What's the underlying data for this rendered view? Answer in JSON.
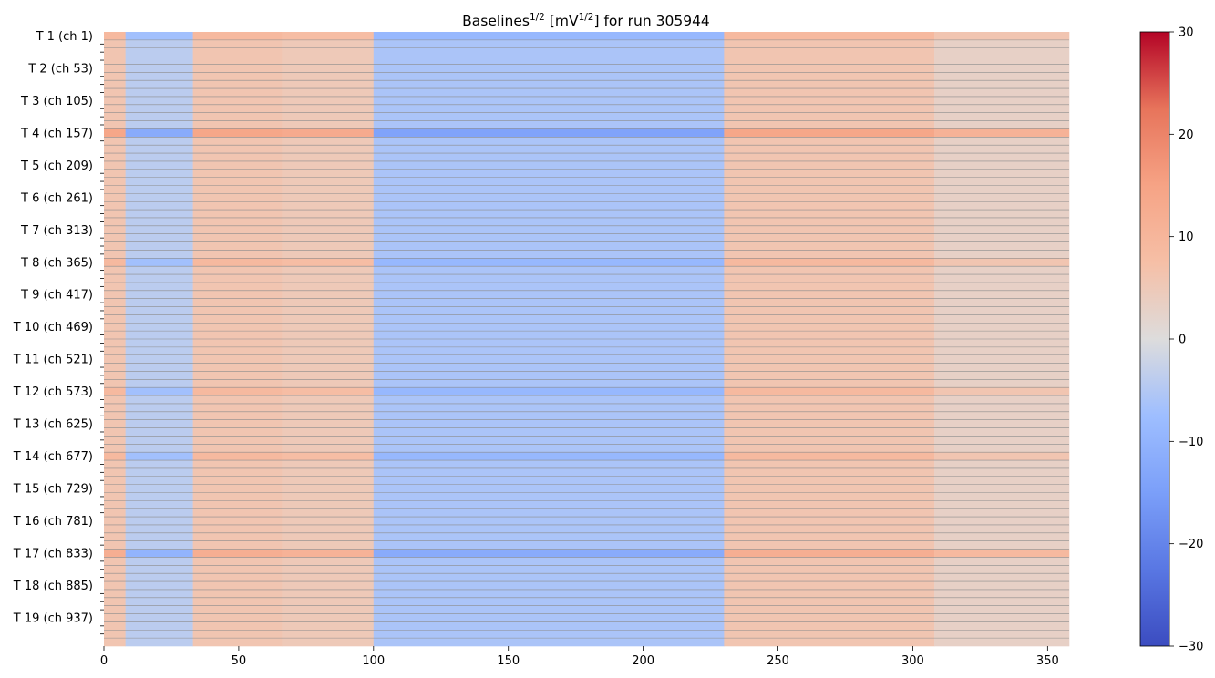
{
  "chart_data": {
    "type": "heatmap",
    "title": {
      "base": "Baselines",
      "sup1": "1/2",
      "mid": " [mV",
      "sup2": "1/2",
      "end": "] for run 305944"
    },
    "xlabel": "",
    "ylabel": "",
    "x_range": [
      0,
      358
    ],
    "x_ticks": [
      0,
      50,
      100,
      150,
      200,
      250,
      300,
      350
    ],
    "y_ticks": [
      "T 1 (ch 1)",
      "T 2 (ch 53)",
      "T 3 (ch 105)",
      "T 4 (ch 157)",
      "T 5 (ch 209)",
      "T 6 (ch 261)",
      "T 7 (ch 313)",
      "T 8 (ch 365)",
      "T 9 (ch 417)",
      "T 10 (ch 469)",
      "T 11 (ch 521)",
      "T 12 (ch 573)",
      "T 13 (ch 625)",
      "T 14 (ch 677)",
      "T 15 (ch 729)",
      "T 16 (ch 781)",
      "T 17 (ch 833)",
      "T 18 (ch 885)",
      "T 19 (ch 937)"
    ],
    "n_rows": 76,
    "colormap": "coolwarm",
    "colorbar": {
      "min": -30,
      "max": 30,
      "ticks": [
        30,
        20,
        10,
        0,
        -10,
        -20,
        -30
      ]
    },
    "column_segments": [
      {
        "from": 0,
        "to": 8,
        "value": 6
      },
      {
        "from": 8,
        "to": 33,
        "value": -4
      },
      {
        "from": 33,
        "to": 66,
        "value": 6
      },
      {
        "from": 66,
        "to": 100,
        "value": 5
      },
      {
        "from": 100,
        "to": 230,
        "value": -6
      },
      {
        "from": 230,
        "to": 308,
        "value": 6
      },
      {
        "from": 308,
        "to": 358,
        "value": 3
      }
    ],
    "row_offsets": [
      {
        "row": 0,
        "value": 3
      },
      {
        "row": 12,
        "value": 8
      },
      {
        "row": 28,
        "value": 3
      },
      {
        "row": 44,
        "value": 3
      },
      {
        "row": 52,
        "value": 3
      },
      {
        "row": 64,
        "value": 6
      }
    ]
  }
}
